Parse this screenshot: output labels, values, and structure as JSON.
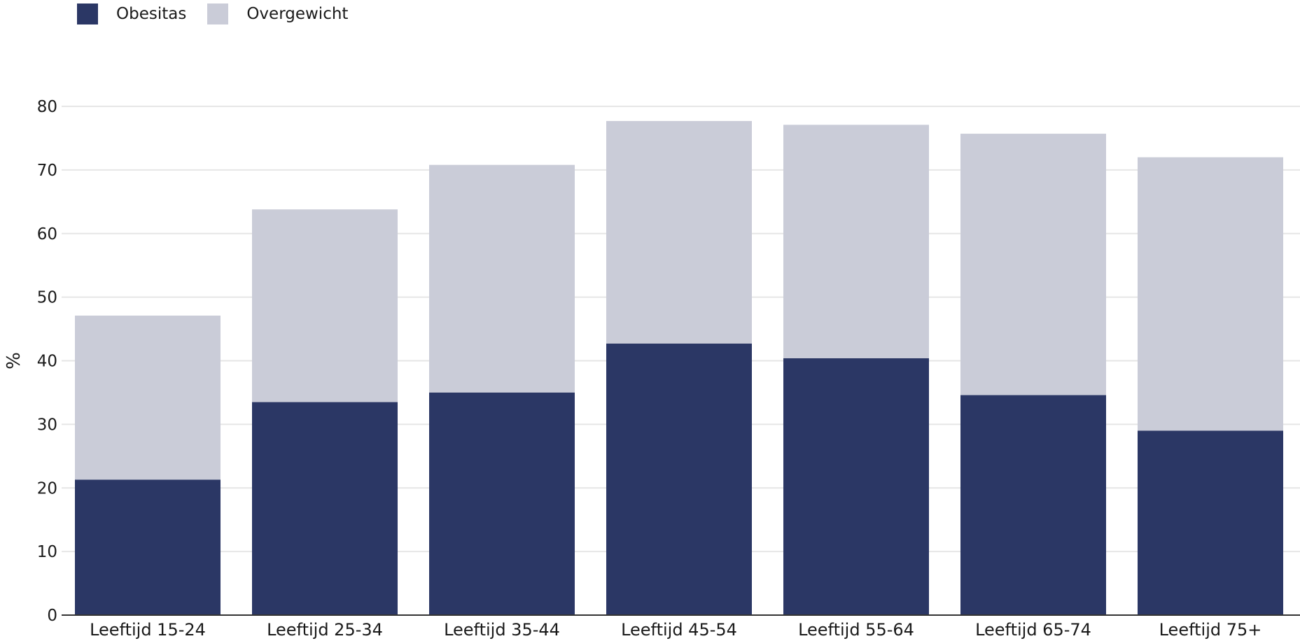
{
  "legend": {
    "items": [
      {
        "label": "Obesitas",
        "color": "#2b3765"
      },
      {
        "label": "Overgewicht",
        "color": "#caccd8"
      }
    ]
  },
  "chart_data": {
    "type": "bar",
    "stacked": true,
    "ylabel": "%",
    "ylim": [
      0,
      80
    ],
    "yticks": [
      0,
      10,
      20,
      30,
      40,
      50,
      60,
      70,
      80
    ],
    "grid": true,
    "legend_position": "top-left",
    "categories": [
      "Leeftijd 15-24",
      "Leeftijd 25-34",
      "Leeftijd 35-44",
      "Leeftijd 45-54",
      "Leeftijd 55-64",
      "Leeftijd 65-74",
      "Leeftijd 75+"
    ],
    "series": [
      {
        "name": "Obesitas",
        "color": "#2b3765",
        "values": [
          21.3,
          33.5,
          35.0,
          42.7,
          40.4,
          34.6,
          29.0
        ]
      },
      {
        "name": "Overgewicht",
        "color": "#caccd8",
        "values": [
          25.8,
          30.3,
          35.8,
          35.0,
          36.7,
          41.1,
          43.0
        ]
      }
    ]
  }
}
